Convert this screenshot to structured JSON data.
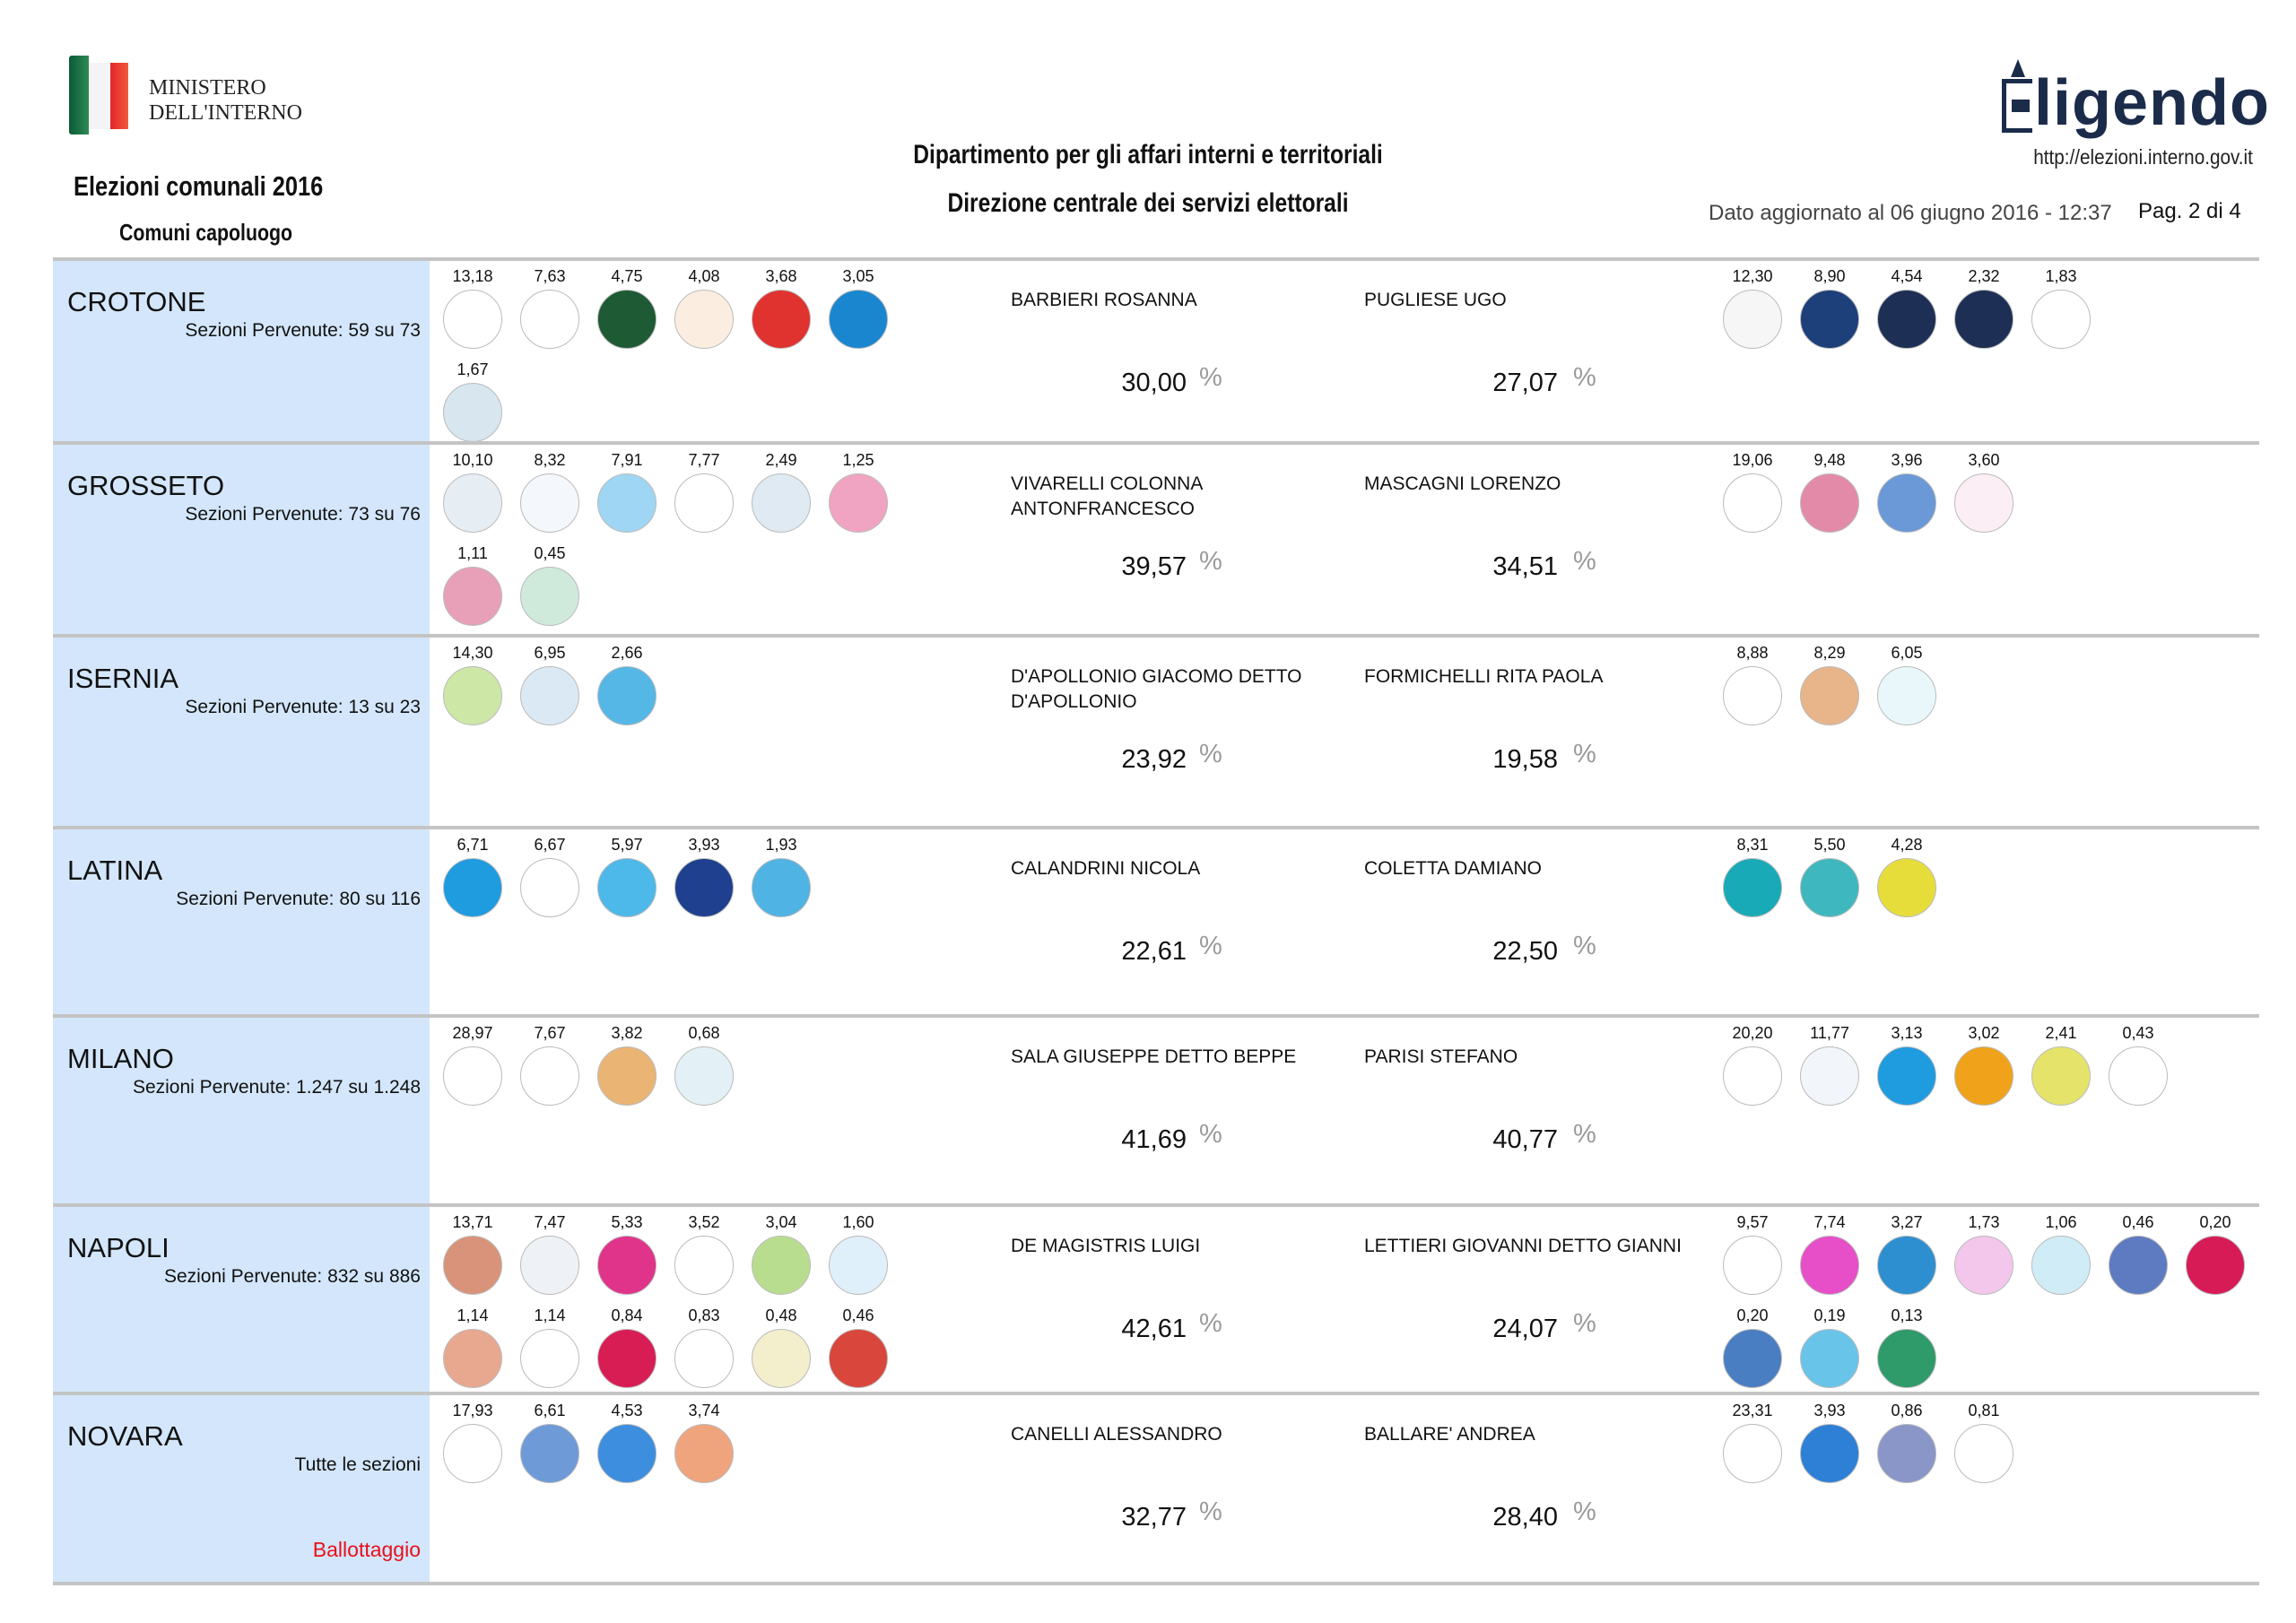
{
  "header": {
    "ministry_line1": "MINISTERO",
    "ministry_line2": "DELL'INTERNO",
    "election_title": "Elezioni comunali 2016",
    "subtitle": "Comuni capoluogo",
    "department": "Dipartimento per gli affari interni e territoriali",
    "directorate": "Direzione centrale dei servizi elettorali",
    "brand_logo_text": "ligendo",
    "url": "http://elezioni.interno.gov.it",
    "updated": "Dato aggiornato al 06 giugno 2016 - 12:37",
    "page": "Pag. 2 di 4",
    "percent_sign": "%"
  },
  "colors": {
    "city_column": "#d3e6fb",
    "ballottaggio": "#e8101a",
    "divider": "#c4c4c4"
  },
  "rows": [
    {
      "city": "CROTONE",
      "sezioni": "Sezioni Pervenute: 59 su 73",
      "left_lists": [
        {
          "v": "13,18",
          "c": "#ffffff"
        },
        {
          "v": "7,63",
          "c": "#ffffff"
        },
        {
          "v": "4,75",
          "c": "#1e5a34"
        },
        {
          "v": "4,08",
          "c": "#fbeee0"
        },
        {
          "v": "3,68",
          "c": "#e0322f"
        },
        {
          "v": "3,05",
          "c": "#1a86d0"
        },
        {
          "v": "1,67",
          "c": "#d7e6ef"
        }
      ],
      "cand1": {
        "name": "BARBIERI ROSANNA",
        "pct": "30,00"
      },
      "cand2": {
        "name": "PUGLIESE UGO",
        "pct": "27,07"
      },
      "right_lists": [
        {
          "v": "12,30",
          "c": "#f6f6f6"
        },
        {
          "v": "8,90",
          "c": "#1d3f7a"
        },
        {
          "v": "4,54",
          "c": "#1e2f55"
        },
        {
          "v": "2,32",
          "c": "#1e2f55"
        },
        {
          "v": "1,83",
          "c": "#ffffff"
        }
      ]
    },
    {
      "city": "GROSSETO",
      "sezioni": "Sezioni Pervenute: 73 su 76",
      "left_lists": [
        {
          "v": "10,10",
          "c": "#e6eef4"
        },
        {
          "v": "8,32",
          "c": "#f4f7fb"
        },
        {
          "v": "7,91",
          "c": "#9fd6f3"
        },
        {
          "v": "7,77",
          "c": "#ffffff"
        },
        {
          "v": "2,49",
          "c": "#dfeaf2"
        },
        {
          "v": "1,25",
          "c": "#f1a4c1"
        },
        {
          "v": "1,11",
          "c": "#e8a0b8"
        },
        {
          "v": "0,45",
          "c": "#cfeadb"
        }
      ],
      "cand1": {
        "name": "VIVARELLI COLONNA ANTONFRANCESCO",
        "pct": "39,57"
      },
      "cand2": {
        "name": "MASCAGNI LORENZO",
        "pct": "34,51"
      },
      "right_lists": [
        {
          "v": "19,06",
          "c": "#ffffff"
        },
        {
          "v": "9,48",
          "c": "#e48aa9"
        },
        {
          "v": "3,96",
          "c": "#6b98d6"
        },
        {
          "v": "3,60",
          "c": "#fbeef4"
        }
      ]
    },
    {
      "city": "ISERNIA",
      "sezioni": "Sezioni Pervenute: 13 su 23",
      "left_lists": [
        {
          "v": "14,30",
          "c": "#cde7a7"
        },
        {
          "v": "6,95",
          "c": "#dbe9f5"
        },
        {
          "v": "2,66",
          "c": "#55b7e6"
        }
      ],
      "cand1": {
        "name": "D'APOLLONIO GIACOMO DETTO D'APOLLONIO",
        "pct": "23,92"
      },
      "cand2": {
        "name": "FORMICHELLI RITA PAOLA",
        "pct": "19,58"
      },
      "right_lists": [
        {
          "v": "8,88",
          "c": "#ffffff"
        },
        {
          "v": "8,29",
          "c": "#e8b48a"
        },
        {
          "v": "6,05",
          "c": "#e9f7fb"
        }
      ]
    },
    {
      "city": "LATINA",
      "sezioni": "Sezioni Pervenute: 80 su 116",
      "left_lists": [
        {
          "v": "6,71",
          "c": "#1f9be0"
        },
        {
          "v": "6,67",
          "c": "#ffffff"
        },
        {
          "v": "5,97",
          "c": "#4db8ea"
        },
        {
          "v": "3,93",
          "c": "#1f3f8f"
        },
        {
          "v": "1,93",
          "c": "#4fb3e3"
        }
      ],
      "cand1": {
        "name": "CALANDRINI NICOLA",
        "pct": "22,61"
      },
      "cand2": {
        "name": "COLETTA DAMIANO",
        "pct": "22,50"
      },
      "right_lists": [
        {
          "v": "8,31",
          "c": "#19aab8"
        },
        {
          "v": "5,50",
          "c": "#3fb7bf"
        },
        {
          "v": "4,28",
          "c": "#e6dd3a"
        }
      ]
    },
    {
      "city": "MILANO",
      "sezioni": "Sezioni Pervenute: 1.247 su 1.248",
      "left_lists": [
        {
          "v": "28,97",
          "c": "#ffffff"
        },
        {
          "v": "7,67",
          "c": "#ffffff"
        },
        {
          "v": "3,82",
          "c": "#eab475"
        },
        {
          "v": "0,68",
          "c": "#e3f1f7"
        }
      ],
      "cand1": {
        "name": "SALA GIUSEPPE DETTO BEPPE",
        "pct": "41,69"
      },
      "cand2": {
        "name": "PARISI STEFANO",
        "pct": "40,77"
      },
      "right_lists": [
        {
          "v": "20,20",
          "c": "#ffffff"
        },
        {
          "v": "11,77",
          "c": "#f2f5fa"
        },
        {
          "v": "3,13",
          "c": "#1f9be0"
        },
        {
          "v": "3,02",
          "c": "#f0a31a"
        },
        {
          "v": "2,41",
          "c": "#e6e36a"
        },
        {
          "v": "0,43",
          "c": "#ffffff"
        }
      ]
    },
    {
      "city": "NAPOLI",
      "sezioni": "Sezioni Pervenute: 832 su 886",
      "left_lists": [
        {
          "v": "13,71",
          "c": "#d9937a"
        },
        {
          "v": "7,47",
          "c": "#eef2f6"
        },
        {
          "v": "5,33",
          "c": "#e0338a"
        },
        {
          "v": "3,52",
          "c": "#ffffff"
        },
        {
          "v": "3,04",
          "c": "#b9dd8f"
        },
        {
          "v": "1,60",
          "c": "#dff0fa"
        },
        {
          "v": "1,14",
          "c": "#e8a890"
        },
        {
          "v": "1,14",
          "c": "#ffffff"
        },
        {
          "v": "0,84",
          "c": "#d81d55"
        },
        {
          "v": "0,83",
          "c": "#ffffff"
        },
        {
          "v": "0,48",
          "c": "#f3eecc"
        },
        {
          "v": "0,46",
          "c": "#d9463b"
        }
      ],
      "cand1": {
        "name": "DE MAGISTRIS LUIGI",
        "pct": "42,61"
      },
      "cand2": {
        "name": "LETTIERI GIOVANNI DETTO GIANNI",
        "pct": "24,07"
      },
      "right_lists": [
        {
          "v": "9,57",
          "c": "#ffffff"
        },
        {
          "v": "7,74",
          "c": "#e64fc7"
        },
        {
          "v": "3,27",
          "c": "#2e8fd0"
        },
        {
          "v": "1,73",
          "c": "#f3c6ec"
        },
        {
          "v": "1,06",
          "c": "#d0ecf7"
        },
        {
          "v": "0,46",
          "c": "#5e7ac0"
        },
        {
          "v": "0,20",
          "c": "#d71b57"
        },
        {
          "v": "0,20",
          "c": "#4a7ec2"
        },
        {
          "v": "0,19",
          "c": "#69c4ea"
        },
        {
          "v": "0,13",
          "c": "#2f9a6a"
        }
      ]
    },
    {
      "city": "NOVARA",
      "sezioni": "Tutte le sezioni",
      "ballottaggio": "Ballottaggio",
      "left_lists": [
        {
          "v": "17,93",
          "c": "#ffffff"
        },
        {
          "v": "6,61",
          "c": "#6e9ad8"
        },
        {
          "v": "4,53",
          "c": "#3d8ede"
        },
        {
          "v": "3,74",
          "c": "#f0a47d"
        }
      ],
      "cand1": {
        "name": "CANELLI ALESSANDRO",
        "pct": "32,77"
      },
      "cand2": {
        "name": "BALLARE' ANDREA",
        "pct": "28,40"
      },
      "right_lists": [
        {
          "v": "23,31",
          "c": "#ffffff"
        },
        {
          "v": "3,93",
          "c": "#2e7fd6"
        },
        {
          "v": "0,86",
          "c": "#8a96c8"
        },
        {
          "v": "0,81",
          "c": "#ffffff"
        }
      ]
    }
  ]
}
